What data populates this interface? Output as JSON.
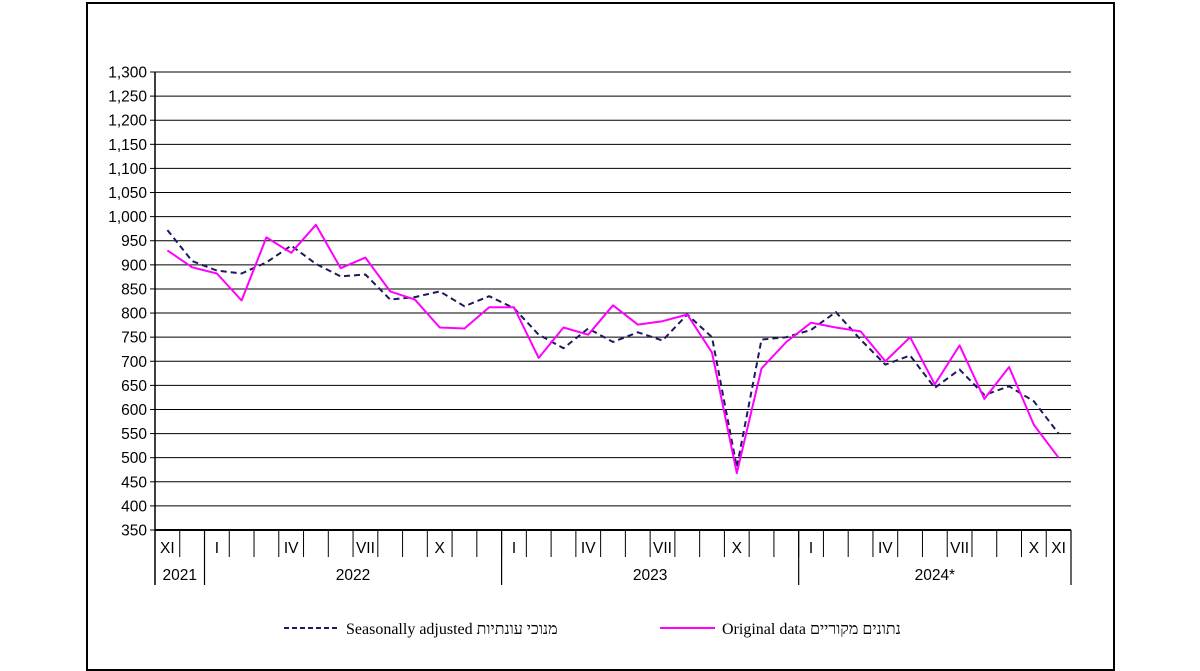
{
  "chart_data": {
    "type": "line",
    "title": "",
    "xlabel": "",
    "ylabel": "",
    "ylim": [
      350,
      1300
    ],
    "ytick_step": 50,
    "yticks": [
      "350",
      "400",
      "450",
      "500",
      "550",
      "600",
      "650",
      "700",
      "750",
      "800",
      "850",
      "900",
      "950",
      "1,000",
      "1,050",
      "1,100",
      "1,150",
      "1,200",
      "1,250",
      "1,300"
    ],
    "grid": "horizontal",
    "months": [
      "XI",
      "XII",
      "I",
      "II",
      "III",
      "IV",
      "V",
      "VI",
      "VII",
      "VIII",
      "IX",
      "X",
      "XI",
      "XII",
      "I",
      "II",
      "III",
      "IV",
      "V",
      "VI",
      "VII",
      "VIII",
      "IX",
      "X",
      "XI",
      "XII",
      "I",
      "II",
      "III",
      "IV",
      "V",
      "VI",
      "VII",
      "VIII",
      "IX",
      "X",
      "XI"
    ],
    "month_labels_shown": [
      "XI",
      "",
      "I",
      "",
      "",
      "IV",
      "",
      "",
      "VII",
      "",
      "",
      "X",
      "",
      "",
      "I",
      "",
      "",
      "IV",
      "",
      "",
      "VII",
      "",
      "",
      "X",
      "",
      "",
      "I",
      "",
      "",
      "IV",
      "",
      "",
      "VII",
      "",
      "",
      "X",
      "XI"
    ],
    "years": [
      {
        "label": "2021",
        "start": 0,
        "end": 1
      },
      {
        "label": "2022",
        "start": 2,
        "end": 13
      },
      {
        "label": "2023",
        "start": 14,
        "end": 25
      },
      {
        "label": "2024*",
        "start": 26,
        "end": 36
      }
    ],
    "series": [
      {
        "name": "Seasonally adjusted מנוכי עונתיות",
        "color": "#1a1a5e",
        "style": "dashed",
        "values": [
          972,
          908,
          888,
          882,
          905,
          940,
          902,
          876,
          880,
          828,
          833,
          845,
          814,
          835,
          810,
          755,
          727,
          768,
          740,
          760,
          743,
          797,
          750,
          480,
          745,
          750,
          765,
          802,
          745,
          693,
          712,
          645,
          683,
          630,
          648,
          617,
          550
        ]
      },
      {
        "name": "Original data נתונים מקוריים",
        "color": "#ff00ff",
        "style": "solid",
        "values": [
          930,
          895,
          882,
          826,
          957,
          925,
          983,
          893,
          915,
          845,
          828,
          770,
          768,
          812,
          812,
          707,
          770,
          755,
          816,
          776,
          783,
          797,
          718,
          468,
          685,
          740,
          780,
          770,
          762,
          700,
          750,
          652,
          733,
          622,
          688,
          568,
          500
        ]
      }
    ],
    "legend_position": "bottom"
  }
}
